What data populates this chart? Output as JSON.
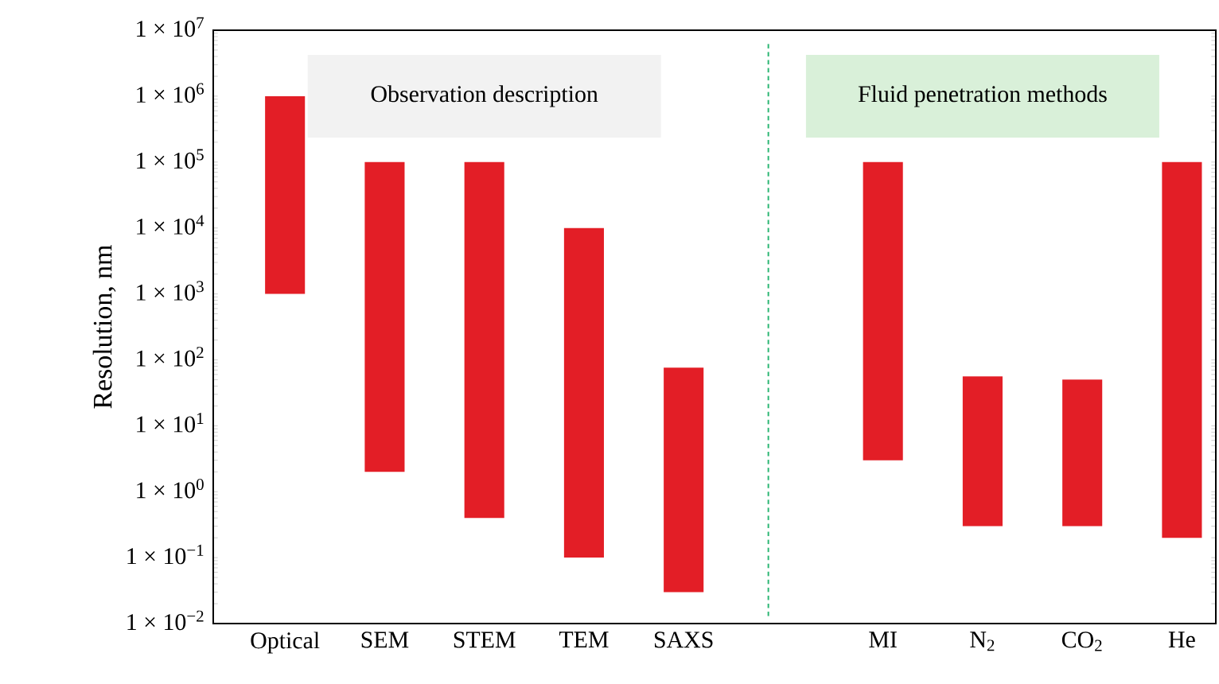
{
  "chart_data": {
    "type": "bar",
    "ylabel": "Resolution, nm",
    "categories": [
      "Optical",
      "SEM",
      "STEM",
      "TEM",
      "SAXS",
      null,
      "MI",
      "N$_{2}$",
      "CO$_{2}$",
      "He"
    ],
    "base": [
      1000,
      2,
      0.4,
      0.1,
      0.03,
      null,
      3,
      0.3,
      0.3,
      0.2
    ],
    "values": [
      999000,
      99998,
      99999.6,
      9999.9,
      76,
      null,
      99997,
      56,
      50,
      99999.8
    ],
    "color": "#e31e26",
    "log": true,
    "ylim": [
      0.01,
      10000000
    ],
    "yticks": [
      {
        "value": 0.01,
        "label": "1 × 10$^{−2}$"
      },
      {
        "value": 0.1,
        "label": "1 × 10$^{−1}$"
      },
      {
        "value": 1,
        "label": "1 × 10$^{0}$"
      },
      {
        "value": 10,
        "label": "1 × 10$^{1}$"
      },
      {
        "value": 100,
        "label": "1 × 10$^{2}$"
      },
      {
        "value": 1000,
        "label": "1 × 10$^{3}$"
      },
      {
        "value": 10000,
        "label": "1 × 10$^{4}$"
      },
      {
        "value": 100000,
        "label": "1 × 10$^{5}$"
      },
      {
        "value": 1000000,
        "label": "1 × 10$^{6}$"
      },
      {
        "value": 10000000,
        "label": "1 × 10$^{7}$"
      }
    ],
    "annotations": [
      "Observation description",
      "Fluid penetration methods"
    ],
    "grid": false
  }
}
